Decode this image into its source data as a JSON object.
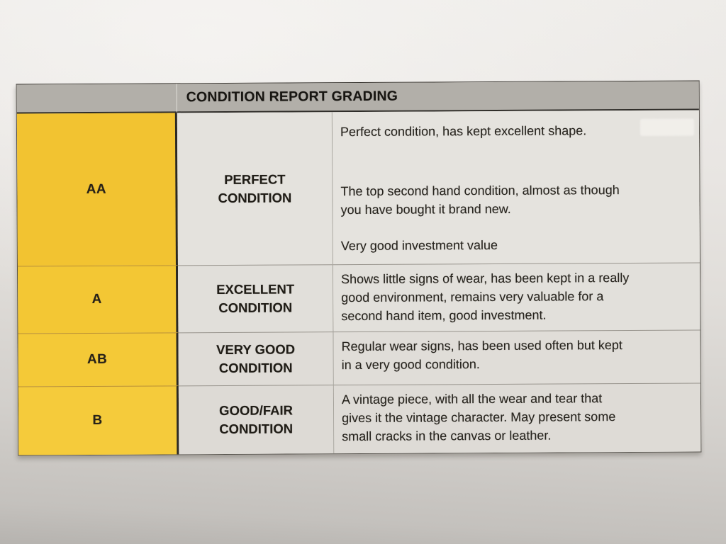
{
  "colors": {
    "accent_yellow": "#f3c634",
    "header_gray": "#b2afa9",
    "cell_gray": "#e2dfda",
    "paper": "#e6e3e0",
    "border_dark": "#2f2d29",
    "text": "#232019"
  },
  "document": {
    "header_title": "CONDITION REPORT GRADING"
  },
  "table": {
    "rows": [
      {
        "code": "AA",
        "label_lines": [
          "PERFECT",
          "CONDITION"
        ],
        "paragraphs": [
          {
            "lines": [
              "Perfect condition, has kept excellent shape."
            ]
          },
          {
            "lines": [
              "The top second hand condition, almost as though",
              "you have bought it brand new."
            ]
          },
          {
            "lines": [
              "Very good investment value"
            ]
          }
        ]
      },
      {
        "code": "A",
        "label_lines": [
          "EXCELLENT",
          "CONDITION"
        ],
        "paragraphs": [
          {
            "lines": [
              "Shows little signs of wear, has been kept in a really",
              "good environment, remains very valuable for a",
              "second hand item, good investment."
            ]
          }
        ]
      },
      {
        "code": "AB",
        "label_lines": [
          "VERY GOOD",
          "CONDITION"
        ],
        "paragraphs": [
          {
            "lines": [
              "Regular wear signs, has been used often but kept",
              "in a very good condition."
            ]
          }
        ]
      },
      {
        "code": "B",
        "label_lines": [
          "GOOD/FAIR",
          "CONDITION"
        ],
        "paragraphs": [
          {
            "lines": [
              "A vintage piece, with all the wear and tear that",
              "gives it the vintage character. May present some",
              "small cracks in the canvas or leather."
            ]
          }
        ]
      }
    ]
  }
}
